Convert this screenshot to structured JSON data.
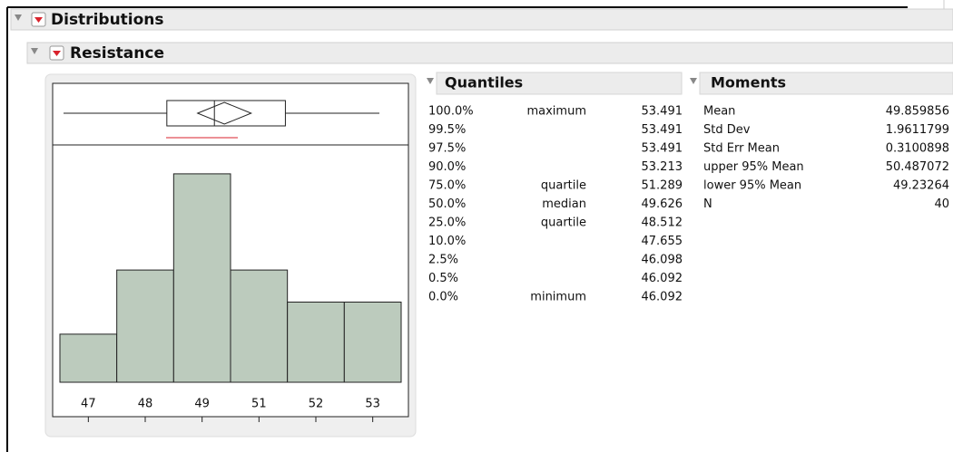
{
  "header": {
    "title": "Distributions"
  },
  "section": {
    "title": "Resistance"
  },
  "histogram": {
    "counts": [
      3,
      7,
      13,
      7,
      5,
      5
    ],
    "tick_labels": [
      "47",
      "48",
      "49",
      "51",
      "52",
      "53"
    ]
  },
  "quantiles": {
    "title": "Quantiles",
    "rows": [
      {
        "percent": "100.0%",
        "label": "maximum",
        "value": 53.491
      },
      {
        "percent": "99.5%",
        "value": 53.491
      },
      {
        "percent": "97.5%",
        "value": 53.491
      },
      {
        "percent": "90.0%",
        "value": 53.213
      },
      {
        "percent": "75.0%",
        "label": "quartile",
        "value": 51.289
      },
      {
        "percent": "50.0%",
        "label": "median",
        "value": 49.626
      },
      {
        "percent": "25.0%",
        "label": "quartile",
        "value": 48.512
      },
      {
        "percent": "10.0%",
        "value": 47.655
      },
      {
        "percent": "2.5%",
        "value": 46.098
      },
      {
        "percent": "0.5%",
        "value": 46.092
      },
      {
        "percent": "0.0%",
        "label": "minimum",
        "value": 46.092
      }
    ]
  },
  "moments": {
    "title": "Moments",
    "rows": [
      {
        "name": "Mean",
        "value": 49.859856
      },
      {
        "name": "Std Dev",
        "value": 1.9611799
      },
      {
        "name": "Std Err Mean",
        "value": 0.3100898
      },
      {
        "name": "upper 95% Mean",
        "value": 50.487072
      },
      {
        "name": "lower 95% Mean",
        "value": 49.23264
      },
      {
        "name": "N",
        "value": 40
      }
    ]
  }
}
